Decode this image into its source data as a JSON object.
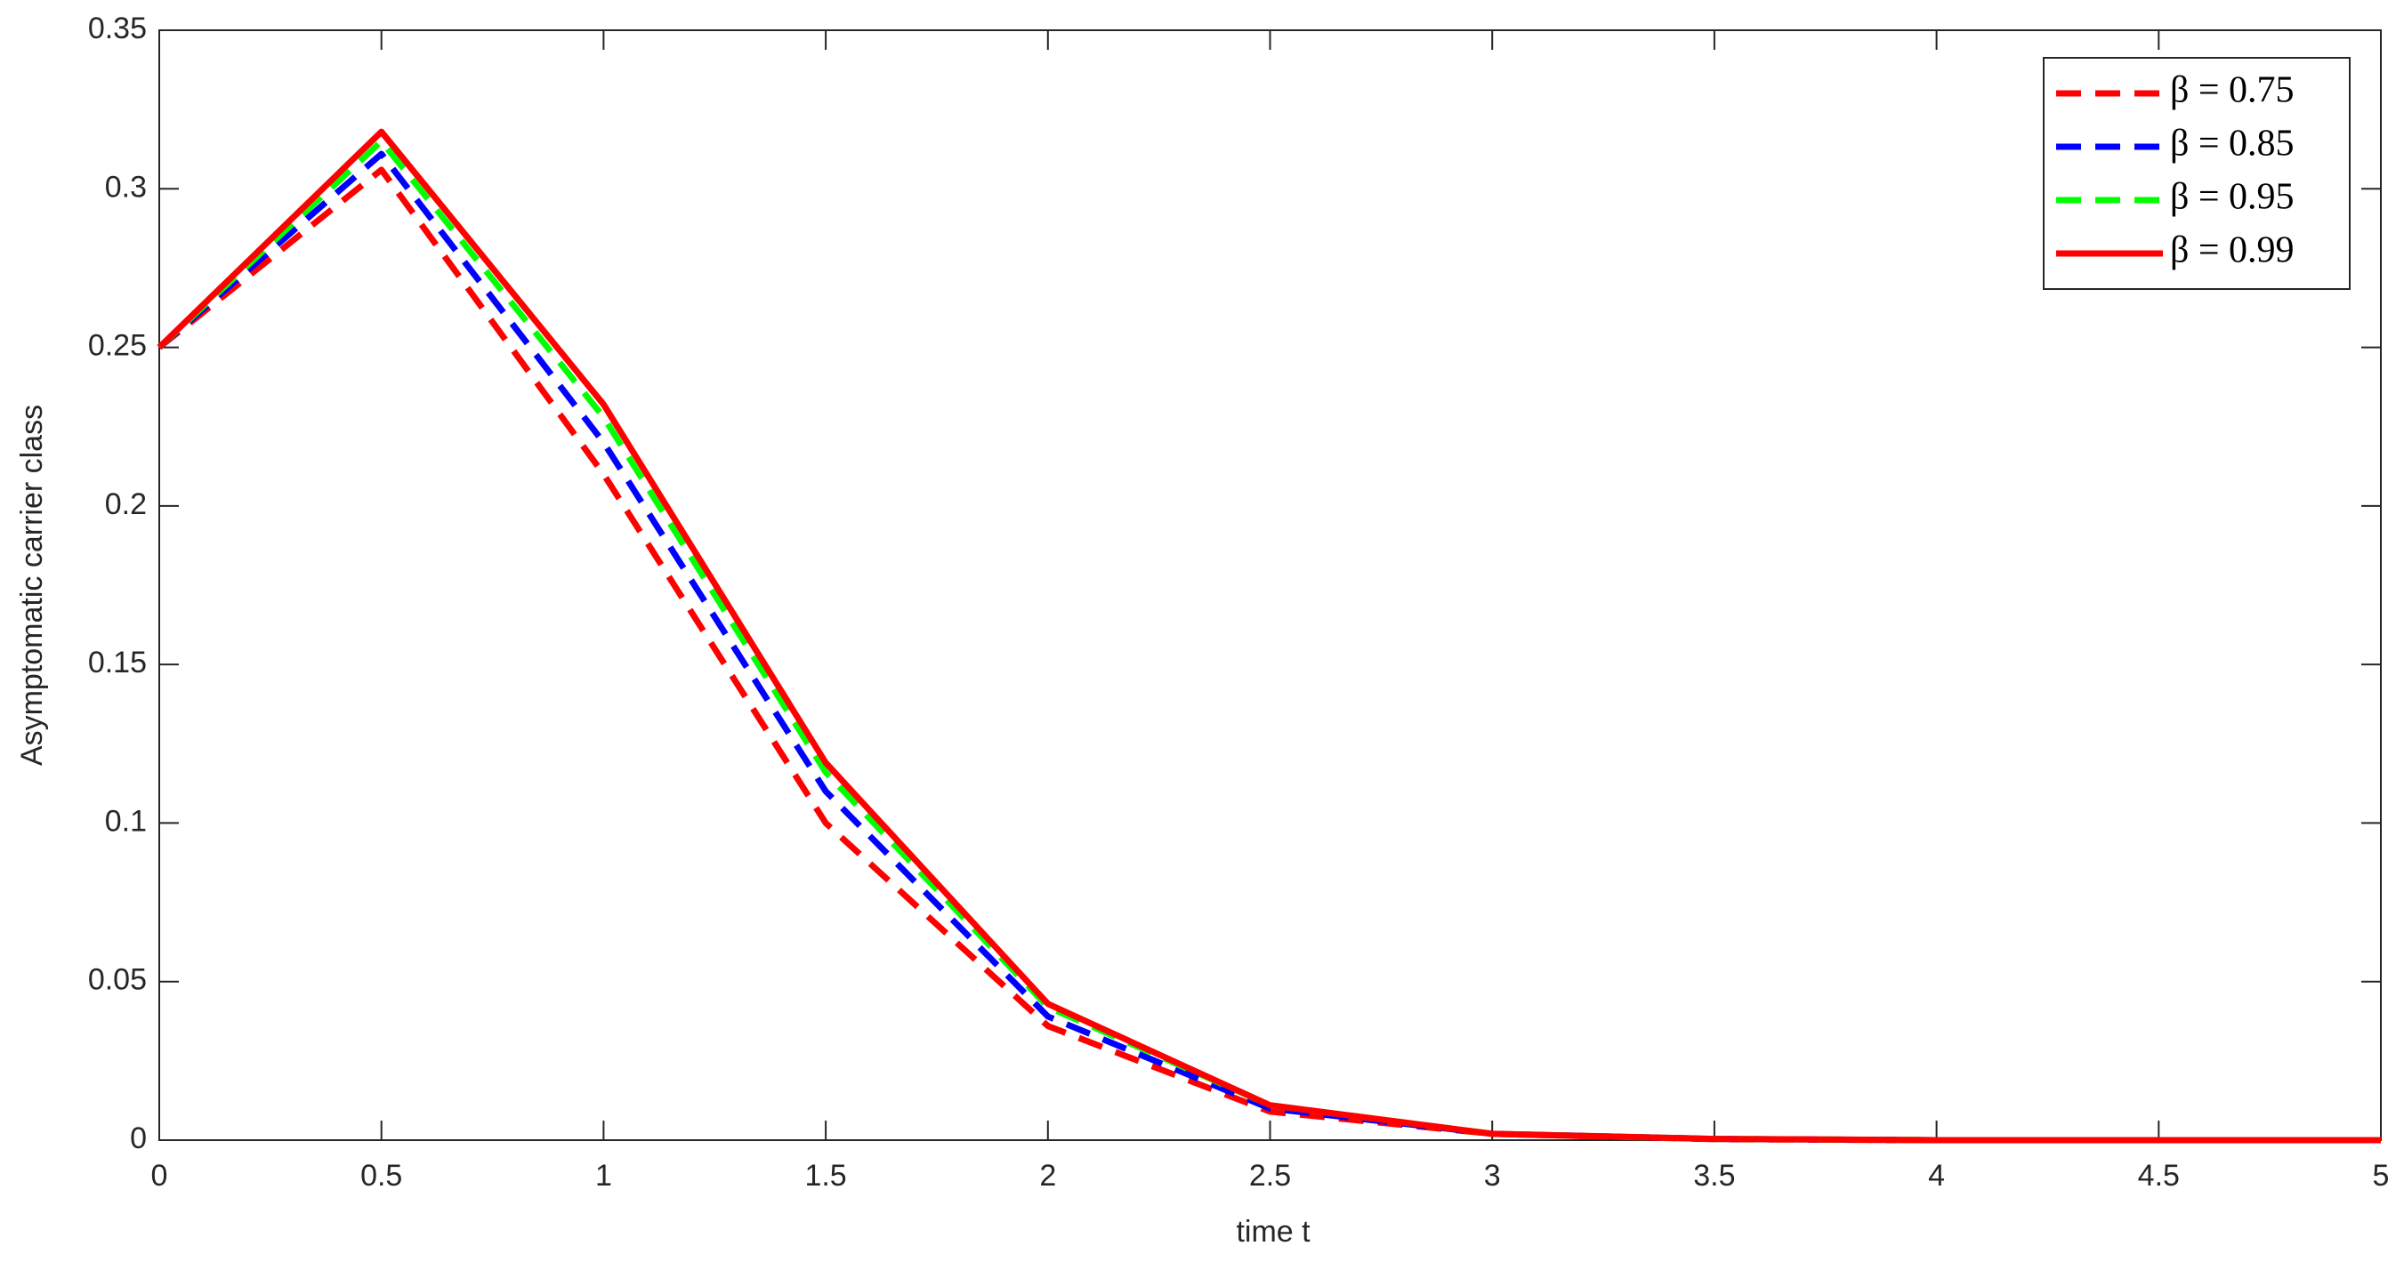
{
  "chart_data": {
    "type": "line",
    "xlabel": "time t",
    "ylabel": "Asymptomatic carrier  class",
    "x": [
      0,
      0.5,
      1,
      1.5,
      2,
      2.5,
      3,
      3.5,
      4,
      4.5,
      5
    ],
    "series": [
      {
        "name": "β = 0.75",
        "color": "#ff0000",
        "style": "dashed",
        "values": [
          0.25,
          0.306,
          0.21,
          0.1,
          0.036,
          0.009,
          0.002,
          0.0003,
          0,
          0,
          0
        ]
      },
      {
        "name": "β = 0.85",
        "color": "#0000ff",
        "style": "dashed",
        "values": [
          0.25,
          0.311,
          0.22,
          0.11,
          0.039,
          0.01,
          0.002,
          0.0004,
          0,
          0,
          0
        ]
      },
      {
        "name": "β = 0.95",
        "color": "#00ff00",
        "style": "dashed",
        "values": [
          0.25,
          0.315,
          0.228,
          0.116,
          0.042,
          0.011,
          0.002,
          0.0004,
          0,
          0,
          0
        ]
      },
      {
        "name": "β = 0.99",
        "color": "#ff0000",
        "style": "solid",
        "values": [
          0.25,
          0.318,
          0.232,
          0.119,
          0.043,
          0.011,
          0.002,
          0.0004,
          0,
          0,
          0
        ]
      }
    ],
    "xlim": [
      0,
      5
    ],
    "xticks": [
      0,
      0.5,
      1,
      1.5,
      2,
      2.5,
      3,
      3.5,
      4,
      4.5,
      5
    ],
    "ylim": [
      0,
      0.35
    ],
    "yticks": [
      0,
      0.05,
      0.1,
      0.15,
      0.2,
      0.25,
      0.3,
      0.35
    ],
    "grid": false,
    "legend": "upper right"
  }
}
